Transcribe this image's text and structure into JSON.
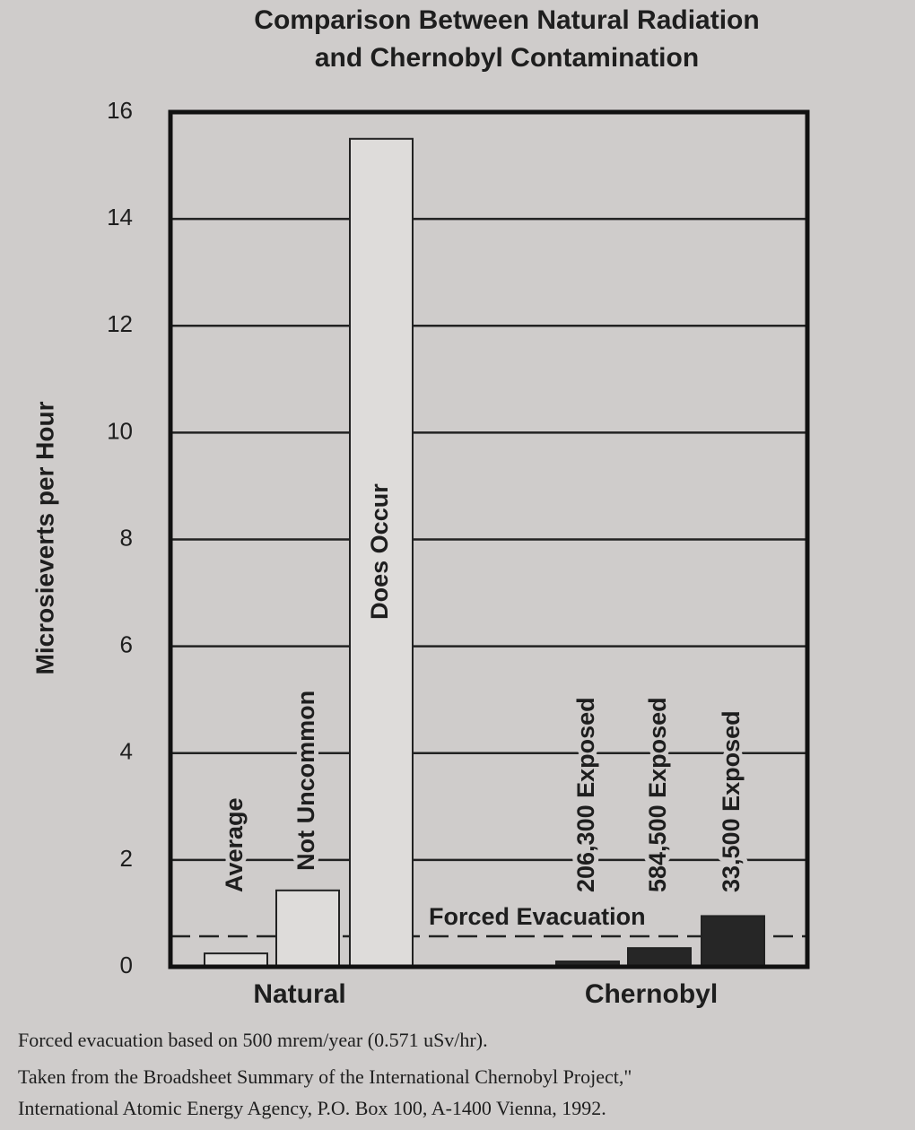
{
  "chart_data": {
    "type": "bar",
    "title": [
      "Comparison Between Natural Radiation",
      "and Chernobyl Contamination"
    ],
    "ylabel": "Microsieverts per Hour",
    "categories": [
      "Average",
      "Not Uncommon",
      "Does Occur",
      "206,300 Exposed",
      "584,500 Exposed",
      "33,500 Exposed"
    ],
    "values": [
      0.25,
      1.43,
      15.5,
      0.1,
      0.35,
      0.95
    ],
    "colors": [
      "#dedcda",
      "#dedcda",
      "#dedcda",
      "#262626",
      "#262626",
      "#262626"
    ],
    "groups": [
      {
        "name": "Natural",
        "members": [
          0,
          1,
          2
        ]
      },
      {
        "name": "Chernobyl",
        "members": [
          3,
          4,
          5
        ]
      }
    ],
    "reference_line": {
      "value": 0.571,
      "label": "Forced Evacuation"
    },
    "ylim": [
      0,
      16
    ],
    "yticks": [
      0,
      2,
      4,
      6,
      8,
      10,
      12,
      14,
      16
    ],
    "grid": true,
    "notes": [
      "Forced evacuation based on 500 mrem/year (0.571 uSv/hr).",
      "Taken from the Broadsheet Summary of the International Chernobyl Project,\"",
      "International Atomic Energy Agency, P.O. Box 100, A-1400 Vienna, 1992."
    ]
  }
}
